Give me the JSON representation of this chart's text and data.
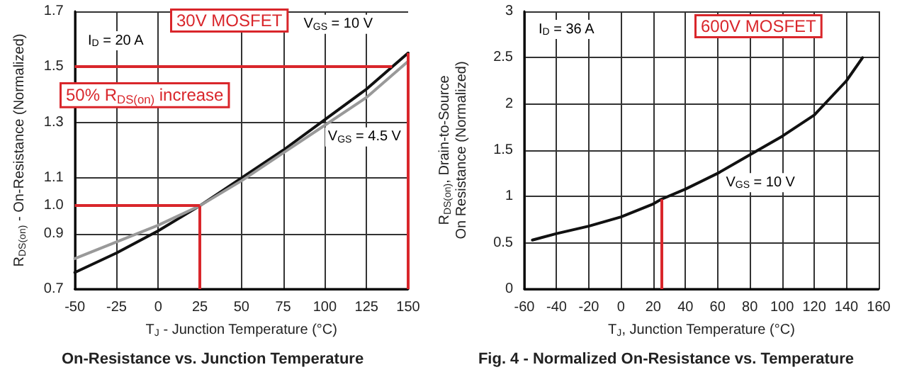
{
  "chart_data": [
    {
      "type": "line",
      "title": "On-Resistance vs. Junction Temperature",
      "xlabel": "T$_{J}$ - Junction Temperature (°C)",
      "ylabel": "R$_{DS(on)}$ - On-Resistance (Normalized)",
      "x": [
        -50,
        -25,
        0,
        25,
        50,
        75,
        100,
        125,
        150
      ],
      "series": [
        {
          "name": "V$_{GS}$ = 10 V",
          "color": "#111111",
          "values": [
            0.76,
            0.83,
            0.91,
            1.0,
            1.1,
            1.2,
            1.31,
            1.42,
            1.55
          ]
        },
        {
          "name": "V$_{GS}$ = 4.5 V",
          "color": "#999999",
          "values": [
            0.81,
            0.87,
            0.93,
            1.0,
            1.09,
            1.19,
            1.29,
            1.39,
            1.52
          ]
        }
      ],
      "xlim": [
        -50,
        150
      ],
      "xticks": [
        -50,
        -25,
        0,
        25,
        50,
        75,
        100,
        125,
        150
      ],
      "ylim": [
        0.7,
        1.7
      ],
      "yticks": [
        0.7,
        0.9,
        {
          "value": 1.0,
          "label": "1.0"
        },
        1.1,
        1.3,
        1.5,
        1.7
      ],
      "grid": true,
      "marker": "none",
      "line_style": "solid",
      "ref_lines": [
        {
          "axis": "y",
          "value": 1.5,
          "label": null,
          "color": "#d9262b"
        },
        {
          "axis": "y",
          "value": 1.0,
          "label": null,
          "color": "#d9262b"
        },
        {
          "axis": "x",
          "value": 25,
          "label": null,
          "color": "#d9262b"
        },
        {
          "axis": "x",
          "value": 150,
          "label": null,
          "color": "#d9262b"
        }
      ],
      "annotations": [
        "I$_{D}$ = 20 A",
        "30V MOSFET",
        "50% R$_{DS(on)}$ increase"
      ]
    },
    {
      "type": "line",
      "title": "Fig. 4 - Normalized On-Resistance vs. Temperature",
      "xlabel": "T$_{J}$, Junction Temperature (°C)",
      "ylabel": "R$_{DS(on)}$, Drain-to-Source\nOn Resistance (Normalized)",
      "x": [
        -55,
        -40,
        -20,
        0,
        20,
        25,
        40,
        60,
        80,
        100,
        120,
        140,
        150
      ],
      "series": [
        {
          "name": "V$_{GS}$ = 10 V",
          "color": "#111111",
          "values": [
            0.53,
            0.6,
            0.68,
            0.78,
            0.92,
            0.97,
            1.08,
            1.25,
            1.45,
            1.65,
            1.88,
            2.25,
            2.5
          ]
        }
      ],
      "xlim": [
        -60,
        160
      ],
      "xticks": [
        -60,
        -40,
        -20,
        0,
        20,
        40,
        60,
        80,
        100,
        120,
        140,
        160
      ],
      "ylim": [
        0,
        3
      ],
      "yticks": [
        0,
        0.5,
        1,
        1.5,
        2,
        2.5,
        3
      ],
      "grid": true,
      "marker": "none",
      "line_style": "solid",
      "ref_lines": [
        {
          "axis": "x",
          "value": 25,
          "label": null,
          "color": "#d9262b"
        }
      ],
      "annotations": [
        "I$_{D}$ = 36 A",
        "600V MOSFET"
      ]
    }
  ]
}
